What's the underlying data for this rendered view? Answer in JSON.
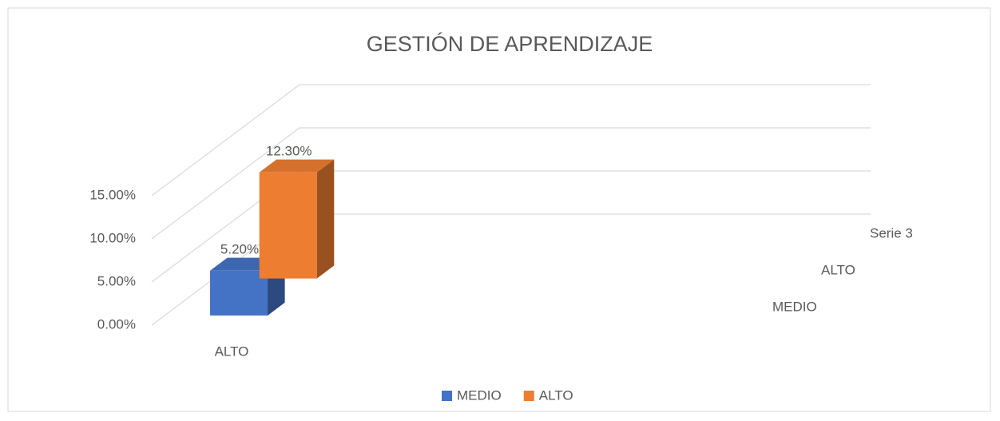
{
  "chart_data": {
    "type": "bar3d",
    "title": "GESTIÓN DE APRENDIZAJE",
    "categories": [
      "ALTO"
    ],
    "series": [
      {
        "name": "MEDIO",
        "color": "#4472c4",
        "values": [
          5.2
        ],
        "value_labels": [
          "5.20%"
        ]
      },
      {
        "name": "ALTO",
        "color": "#ed7d31",
        "values": [
          12.3
        ],
        "value_labels": [
          "12.30%"
        ]
      }
    ],
    "depth_labels": [
      "MEDIO",
      "ALTO",
      "Serie 3"
    ],
    "ylim": [
      0,
      15
    ],
    "yticks": [
      {
        "value": 0,
        "label": "0.00%"
      },
      {
        "value": 5,
        "label": "5.00%"
      },
      {
        "value": 10,
        "label": "10.00%"
      },
      {
        "value": 15,
        "label": "15.00%"
      }
    ],
    "grid": true,
    "legend": "bottom"
  }
}
